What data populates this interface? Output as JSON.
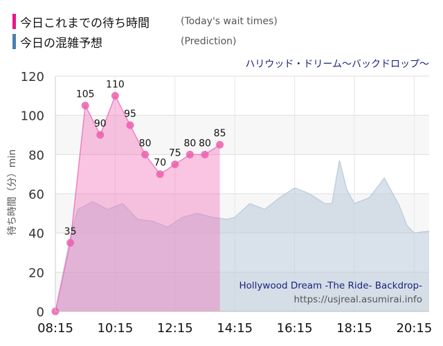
{
  "legend": {
    "today": {
      "label": "今日これまでの待ち時間",
      "sub": "(Today's wait times)",
      "color": "#e8168a"
    },
    "prediction": {
      "label": "今日の混雑予想",
      "sub": "(Prediction)",
      "color": "#4a7fb0"
    }
  },
  "chart_data": {
    "type": "area",
    "title": "ハリウッド・ドリーム～バックドロップ～",
    "watermark": {
      "line1": "Hollywood Dream -The Ride- Backdrop-",
      "line2": "https://usjreal.asumirai.info"
    },
    "ylabel": "待ち時間（分）min",
    "xlabel": "",
    "ylim": [
      0,
      120
    ],
    "yticks": [
      0,
      20,
      40,
      60,
      80,
      100,
      120
    ],
    "xticks": [
      "08:15",
      "10:15",
      "12:15",
      "14:15",
      "16:15",
      "18:15",
      "20:15"
    ],
    "grid": true,
    "series": [
      {
        "name": "今日の混雑予想",
        "color": "#b9cadb",
        "points": [
          [
            "08:15",
            0
          ],
          [
            "08:45",
            38
          ],
          [
            "09:00",
            52
          ],
          [
            "09:30",
            56
          ],
          [
            "10:00",
            52
          ],
          [
            "10:30",
            55
          ],
          [
            "11:00",
            47
          ],
          [
            "11:30",
            46
          ],
          [
            "12:00",
            43
          ],
          [
            "12:30",
            48
          ],
          [
            "13:00",
            50
          ],
          [
            "13:30",
            48
          ],
          [
            "14:00",
            47
          ],
          [
            "14:15",
            48
          ],
          [
            "14:45",
            55
          ],
          [
            "15:15",
            52
          ],
          [
            "15:45",
            58
          ],
          [
            "16:15",
            63
          ],
          [
            "16:45",
            60
          ],
          [
            "17:15",
            55
          ],
          [
            "17:30",
            55
          ],
          [
            "17:45",
            77
          ],
          [
            "18:00",
            62
          ],
          [
            "18:15",
            55
          ],
          [
            "18:45",
            58
          ],
          [
            "19:15",
            68
          ],
          [
            "19:45",
            54
          ],
          [
            "20:00",
            44
          ],
          [
            "20:15",
            40
          ],
          [
            "20:45",
            41
          ]
        ]
      },
      {
        "name": "今日これまでの待ち時間",
        "color": "#f06fb8",
        "labels": true,
        "points": [
          [
            "08:15",
            0
          ],
          [
            "08:45",
            35
          ],
          [
            "09:15",
            105
          ],
          [
            "09:45",
            90
          ],
          [
            "10:15",
            110
          ],
          [
            "10:45",
            95
          ],
          [
            "11:15",
            80
          ],
          [
            "11:45",
            70
          ],
          [
            "12:15",
            75
          ],
          [
            "12:45",
            80
          ],
          [
            "13:15",
            80
          ],
          [
            "13:45",
            85
          ]
        ]
      }
    ]
  }
}
